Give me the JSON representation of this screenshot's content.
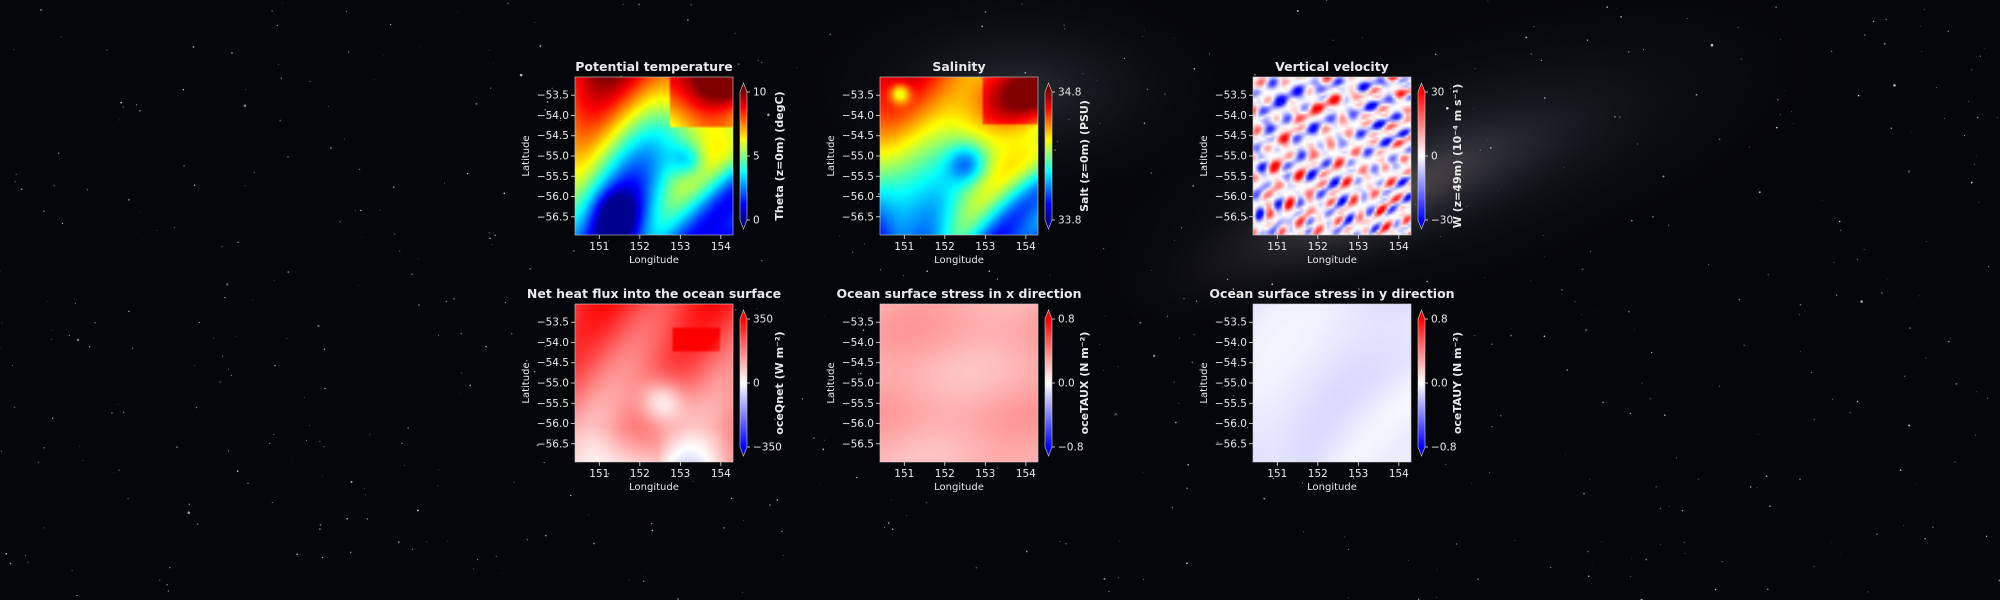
{
  "colors": {
    "background": "#05060a",
    "text": "#e8e8e8",
    "jet": [
      "#00008f",
      "#0000ff",
      "#0080ff",
      "#00ffff",
      "#80ff80",
      "#ffff00",
      "#ff8000",
      "#ff0000",
      "#800000"
    ],
    "bwr": [
      "#0000ff",
      "#ffffff",
      "#ff0000"
    ]
  },
  "chart_data": [
    {
      "type": "heatmap",
      "title": "Potential temperature",
      "xlabel": "Longitude",
      "ylabel": "Latitude",
      "xticks": [
        151,
        152,
        153,
        154
      ],
      "yticks": [
        -53.5,
        -54.0,
        -54.5,
        -55.0,
        -55.5,
        -56.0,
        -56.5
      ],
      "xlim": [
        150.4,
        154.3
      ],
      "ylim": [
        -56.95,
        -53.05
      ],
      "colorbar": {
        "label": "Theta (z=0m) (degC)",
        "ticks": [
          "10",
          "5",
          "0"
        ],
        "range": [
          0,
          10
        ],
        "colormap": "jet"
      },
      "field": "temperature"
    },
    {
      "type": "heatmap",
      "title": "Salinity",
      "xlabel": "Longitude",
      "ylabel": "Latitude",
      "xticks": [
        151,
        152,
        153,
        154
      ],
      "yticks": [
        -53.5,
        -54.0,
        -54.5,
        -55.0,
        -55.5,
        -56.0,
        -56.5
      ],
      "xlim": [
        150.4,
        154.3
      ],
      "ylim": [
        -56.95,
        -53.05
      ],
      "colorbar": {
        "label": "Salt (z=0m) (PSU)",
        "ticks": [
          "34.8",
          "33.8"
        ],
        "range": [
          33.8,
          34.8
        ],
        "colormap": "jet"
      },
      "field": "salinity"
    },
    {
      "type": "heatmap",
      "title": "Vertical velocity",
      "xlabel": "Longitude",
      "ylabel": "Latitude",
      "xticks": [
        151,
        152,
        153,
        154
      ],
      "yticks": [
        -53.5,
        -54.0,
        -54.5,
        -55.0,
        -55.5,
        -56.0,
        -56.5
      ],
      "xlim": [
        150.4,
        154.3
      ],
      "ylim": [
        -56.95,
        -53.05
      ],
      "colorbar": {
        "label": "W (z=49m) (10⁻⁴ m s⁻¹)",
        "ticks": [
          "30",
          "0",
          "−30"
        ],
        "range": [
          -30,
          30
        ],
        "colormap": "bwr"
      },
      "field": "velocity"
    },
    {
      "type": "heatmap",
      "title": "Net heat flux into the ocean surface",
      "xlabel": "Longitude",
      "ylabel": "Latitude",
      "xticks": [
        151,
        152,
        153,
        154
      ],
      "yticks": [
        -53.5,
        -54.0,
        -54.5,
        -55.0,
        -55.5,
        -56.0,
        -56.5
      ],
      "xlim": [
        150.4,
        154.3
      ],
      "ylim": [
        -56.95,
        -53.05
      ],
      "colorbar": {
        "label": "oceQnet (W m⁻²)",
        "ticks": [
          "350",
          "0",
          "−350"
        ],
        "range": [
          -350,
          350
        ],
        "colormap": "bwr"
      },
      "field": "heatflux"
    },
    {
      "type": "heatmap",
      "title": "Ocean surface stress in x direction",
      "xlabel": "Longitude",
      "ylabel": "Latitude",
      "xticks": [
        151,
        152,
        153,
        154
      ],
      "yticks": [
        -53.5,
        -54.0,
        -54.5,
        -55.0,
        -55.5,
        -56.0,
        -56.5
      ],
      "xlim": [
        150.4,
        154.3
      ],
      "ylim": [
        -56.95,
        -53.05
      ],
      "colorbar": {
        "label": "oceTAUX (N m⁻²)",
        "ticks": [
          "0.8",
          "0.0",
          "−0.8"
        ],
        "range": [
          -0.8,
          0.8
        ],
        "colormap": "bwr"
      },
      "field": "taux"
    },
    {
      "type": "heatmap",
      "title": "Ocean surface stress in y direction",
      "xlabel": "Longitude",
      "ylabel": "Latitude",
      "xticks": [
        151,
        152,
        153,
        154
      ],
      "yticks": [
        -53.5,
        -54.0,
        -54.5,
        -55.0,
        -55.5,
        -56.0,
        -56.5
      ],
      "xlim": [
        150.4,
        154.3
      ],
      "ylim": [
        -56.95,
        -53.05
      ],
      "colorbar": {
        "label": "oceTAUY (N m⁻²)",
        "ticks": [
          "0.8",
          "0.0",
          "−0.8"
        ],
        "range": [
          -0.8,
          0.8
        ],
        "colormap": "bwr"
      },
      "field": "tauy"
    }
  ]
}
